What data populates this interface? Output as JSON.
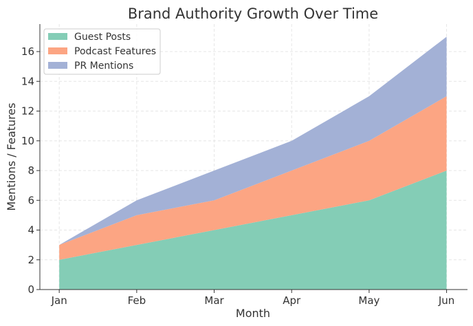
{
  "chart_data": {
    "type": "area",
    "stacked": true,
    "title": "Brand Authority Growth Over Time",
    "xlabel": "Month",
    "ylabel": "Mentions / Features",
    "categories": [
      "Jan",
      "Feb",
      "Mar",
      "Apr",
      "May",
      "Jun"
    ],
    "series": [
      {
        "name": "Guest Posts",
        "values": [
          2,
          3,
          4,
          5,
          6,
          8
        ],
        "color": "#84cdb6"
      },
      {
        "name": "Podcast Features",
        "values": [
          1,
          2,
          2,
          3,
          4,
          5
        ],
        "color": "#fca583"
      },
      {
        "name": "PR Mentions",
        "values": [
          0,
          1,
          2,
          2,
          3,
          4
        ],
        "color": "#a3b1d6"
      }
    ],
    "yticks": [
      0,
      2,
      4,
      6,
      8,
      10,
      12,
      14,
      16
    ],
    "ylim": [
      0,
      17.85
    ],
    "grid": true,
    "legend_position": "top-left"
  }
}
